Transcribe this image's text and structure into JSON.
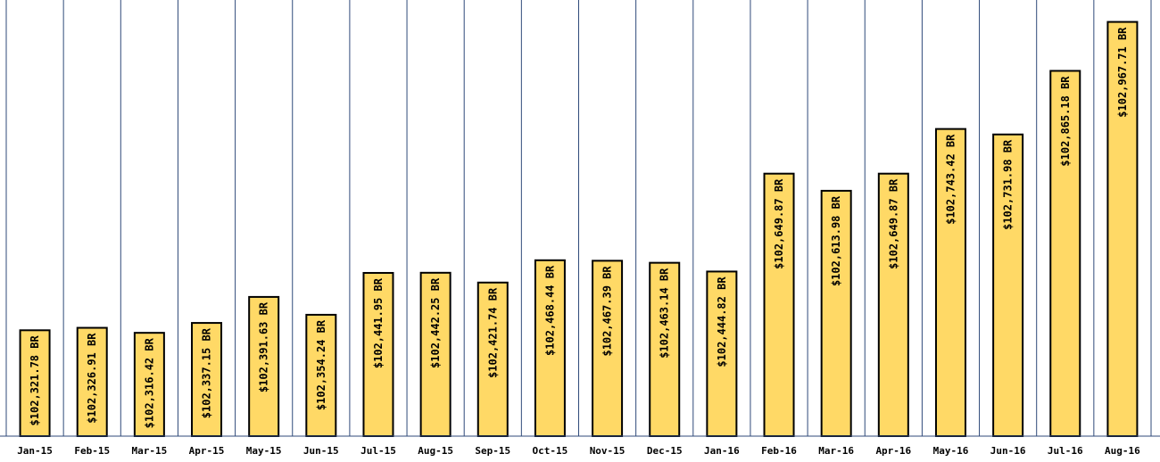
{
  "chart_data": {
    "type": "bar",
    "categories": [
      "Jan-15",
      "Feb-15",
      "Mar-15",
      "Apr-15",
      "May-15",
      "Jun-15",
      "Jul-15",
      "Aug-15",
      "Sep-15",
      "Oct-15",
      "Nov-15",
      "Dec-15",
      "Jan-16",
      "Feb-16",
      "Mar-16",
      "Apr-16",
      "May-16",
      "Jun-16",
      "Jul-16",
      "Aug-16"
    ],
    "values": [
      102321.78,
      102326.91,
      102316.42,
      102337.15,
      102391.63,
      102354.24,
      102441.95,
      102442.25,
      102421.74,
      102468.44,
      102467.39,
      102463.14,
      102444.82,
      102649.87,
      102613.98,
      102649.87,
      102743.42,
      102731.98,
      102865.18,
      102967.71
    ],
    "data_labels": [
      "$102,321.78 BR",
      "$102,326.91 BR",
      "$102,316.42 BR",
      "$102,337.15 BR",
      "$102,391.63 BR",
      "$102,354.24 BR",
      "$102,441.95 BR",
      "$102,442.25 BR",
      "$102,421.74 BR",
      "$102,468.44 BR",
      "$102,467.39 BR",
      "$102,463.14 BR",
      "$102,444.82 BR",
      "$102,649.87 BR",
      "$102,613.98 BR",
      "$102,649.87 BR",
      "$102,743.42 BR",
      "$102,731.98 BR",
      "$102,865.18 BR",
      "$102,967.71 BR"
    ],
    "title": "",
    "xlabel": "",
    "ylabel": "",
    "ylim": [
      102100,
      102980
    ],
    "grid": "vertical",
    "legend": "none",
    "colors": {
      "bar_fill": "#FFD966",
      "bar_stroke": "#000000",
      "gridline": "#2F4A7A"
    }
  }
}
